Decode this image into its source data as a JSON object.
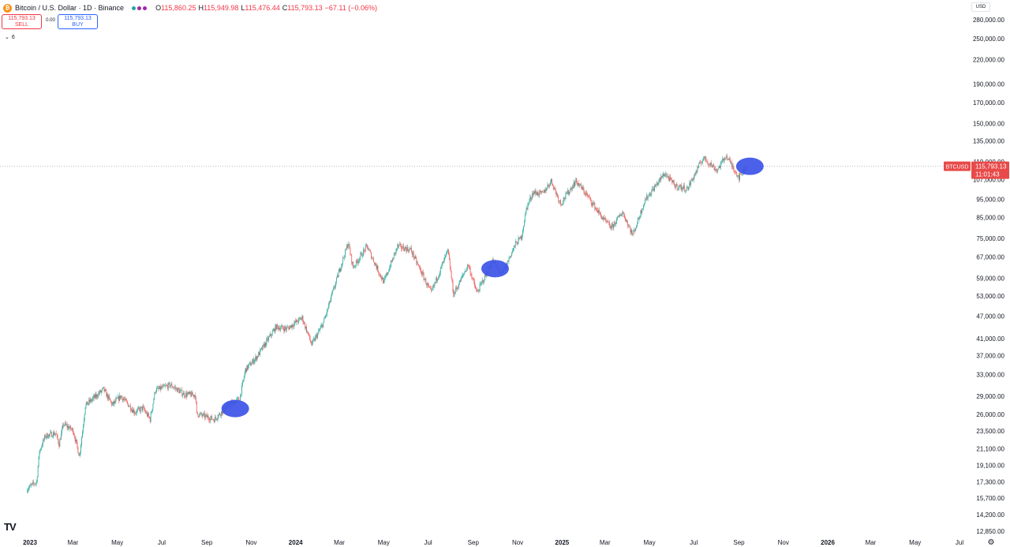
{
  "header": {
    "coin_glyph": "₿",
    "title": "Bitcoin / U.S. Dollar · 1D · Binance",
    "ohlc": {
      "o_label": "O",
      "o_value": "115,860.25",
      "h_label": "H",
      "h_value": "115,949.98",
      "l_label": "L",
      "l_value": "115,476.44",
      "c_label": "C",
      "c_value": "115,793.13",
      "change": "−67.11 (−0.06%)"
    }
  },
  "trade": {
    "sell_price": "115,793.13",
    "sell_label": "SELL",
    "spread": "0.00",
    "buy_price": "115,793.13",
    "buy_label": "BUY"
  },
  "indicators_toggle": {
    "count": "6"
  },
  "currency": "USD",
  "price_tag": {
    "symbol": "BTCUSD",
    "price": "115,793.13",
    "countdown": "11:01:43"
  },
  "colors": {
    "up": "#26a69a",
    "down": "#ef5350",
    "tag": "#e84a4a",
    "highlight": "#3d55e8",
    "grid": "#9598a1"
  },
  "chart_data": {
    "type": "candlestick",
    "symbol": "BTCUSD",
    "interval": "1D",
    "y_scale": "log",
    "y_ticks": [
      280000,
      250000,
      220000,
      190000,
      170000,
      150000,
      135000,
      119000,
      107000,
      95000,
      85000,
      75000,
      67000,
      59000,
      53000,
      47000,
      41000,
      37000,
      33000,
      29000,
      26000,
      23500,
      21100,
      19100,
      17300,
      15700,
      14200,
      12850
    ],
    "y_tick_labels": [
      "280,000.00",
      "250,000.00",
      "220,000.00",
      "190,000.00",
      "170,000.00",
      "150,000.00",
      "135,000.00",
      "119,000.00",
      "107,000.00",
      "95,000.00",
      "85,000.00",
      "75,000.00",
      "67,000.00",
      "59,000.00",
      "53,000.00",
      "47,000.00",
      "41,000.00",
      "37,000.00",
      "33,000.00",
      "29,000.00",
      "26,000.00",
      "23,500.00",
      "21,100.00",
      "19,100.00",
      "17,300.00",
      "15,700.00",
      "14,200.00",
      "12,850.00"
    ],
    "x_ticks": [
      {
        "label": "2023",
        "date": "2023-01-01",
        "bold": true
      },
      {
        "label": "Mar",
        "date": "2023-03-01"
      },
      {
        "label": "May",
        "date": "2023-05-01"
      },
      {
        "label": "Jul",
        "date": "2023-07-01"
      },
      {
        "label": "Sep",
        "date": "2023-09-01"
      },
      {
        "label": "Nov",
        "date": "2023-11-01"
      },
      {
        "label": "2024",
        "date": "2024-01-01",
        "bold": true
      },
      {
        "label": "Mar",
        "date": "2024-03-01"
      },
      {
        "label": "May",
        "date": "2024-05-01"
      },
      {
        "label": "Jul",
        "date": "2024-07-01"
      },
      {
        "label": "Sep",
        "date": "2024-09-01"
      },
      {
        "label": "Nov",
        "date": "2024-11-01"
      },
      {
        "label": "2025",
        "date": "2025-01-01",
        "bold": true
      },
      {
        "label": "Mar",
        "date": "2025-03-01"
      },
      {
        "label": "May",
        "date": "2025-05-01"
      },
      {
        "label": "Jul",
        "date": "2025-07-01"
      },
      {
        "label": "Sep",
        "date": "2025-09-01"
      },
      {
        "label": "Nov",
        "date": "2025-11-01"
      },
      {
        "label": "2026",
        "date": "2026-01-01",
        "bold": true
      },
      {
        "label": "Mar",
        "date": "2026-03-01"
      },
      {
        "label": "May",
        "date": "2026-05-01"
      },
      {
        "label": "Jul",
        "date": "2026-07-01"
      }
    ],
    "last_price": 115793.13,
    "path": [
      [
        "2022-12-28",
        16600
      ],
      [
        "2023-01-10",
        17300
      ],
      [
        "2023-01-14",
        20800
      ],
      [
        "2023-01-22",
        22800
      ],
      [
        "2023-02-05",
        23200
      ],
      [
        "2023-02-10",
        21700
      ],
      [
        "2023-02-16",
        24500
      ],
      [
        "2023-03-01",
        23600
      ],
      [
        "2023-03-10",
        20200
      ],
      [
        "2023-03-18",
        27400
      ],
      [
        "2023-04-12",
        30200
      ],
      [
        "2023-04-24",
        27500
      ],
      [
        "2023-05-06",
        29000
      ],
      [
        "2023-05-25",
        26300
      ],
      [
        "2023-06-05",
        27000
      ],
      [
        "2023-06-15",
        25200
      ],
      [
        "2023-06-22",
        30000
      ],
      [
        "2023-07-13",
        31000
      ],
      [
        "2023-08-01",
        29300
      ],
      [
        "2023-08-16",
        29200
      ],
      [
        "2023-08-18",
        26100
      ],
      [
        "2023-09-11",
        25200
      ],
      [
        "2023-10-01",
        27500
      ],
      [
        "2023-10-16",
        28500
      ],
      [
        "2023-10-24",
        34000
      ],
      [
        "2023-11-09",
        36800
      ],
      [
        "2023-12-05",
        44000
      ],
      [
        "2023-12-20",
        43500
      ],
      [
        "2024-01-10",
        46500
      ],
      [
        "2024-01-23",
        39500
      ],
      [
        "2024-02-08",
        45000
      ],
      [
        "2024-02-28",
        60000
      ],
      [
        "2024-03-13",
        73000
      ],
      [
        "2024-03-20",
        63000
      ],
      [
        "2024-04-08",
        71500
      ],
      [
        "2024-05-01",
        57500
      ],
      [
        "2024-05-20",
        71500
      ],
      [
        "2024-06-07",
        70000
      ],
      [
        "2024-07-05",
        54000
      ],
      [
        "2024-07-28",
        69500
      ],
      [
        "2024-08-05",
        53500
      ],
      [
        "2024-08-25",
        64000
      ],
      [
        "2024-09-06",
        54000
      ],
      [
        "2024-09-28",
        65500
      ],
      [
        "2024-10-10",
        60000
      ],
      [
        "2024-10-29",
        72500
      ],
      [
        "2024-11-06",
        75500
      ],
      [
        "2024-11-13",
        90000
      ],
      [
        "2024-11-22",
        99000
      ],
      [
        "2024-12-05",
        98000
      ],
      [
        "2024-12-17",
        106000
      ],
      [
        "2024-12-30",
        92500
      ],
      [
        "2025-01-20",
        106000
      ],
      [
        "2025-02-03",
        98000
      ],
      [
        "2025-02-27",
        84000
      ],
      [
        "2025-03-10",
        80000
      ],
      [
        "2025-03-25",
        88000
      ],
      [
        "2025-04-08",
        76500
      ],
      [
        "2025-04-25",
        94500
      ],
      [
        "2025-05-22",
        111000
      ],
      [
        "2025-06-05",
        103000
      ],
      [
        "2025-06-22",
        101000
      ],
      [
        "2025-07-14",
        122000
      ],
      [
        "2025-08-02",
        113000
      ],
      [
        "2025-08-14",
        123500
      ],
      [
        "2025-09-01",
        108500
      ],
      [
        "2025-09-05",
        111000
      ],
      [
        "2025-09-12",
        115793
      ]
    ],
    "highlights": [
      {
        "label": "",
        "center_date": "2023-10-10",
        "center_price": 26900
      },
      {
        "label": "",
        "center_date": "2024-10-01",
        "center_price": 62500
      },
      {
        "label": "",
        "center_date": "2025-09-16",
        "center_price": 115793
      }
    ]
  }
}
